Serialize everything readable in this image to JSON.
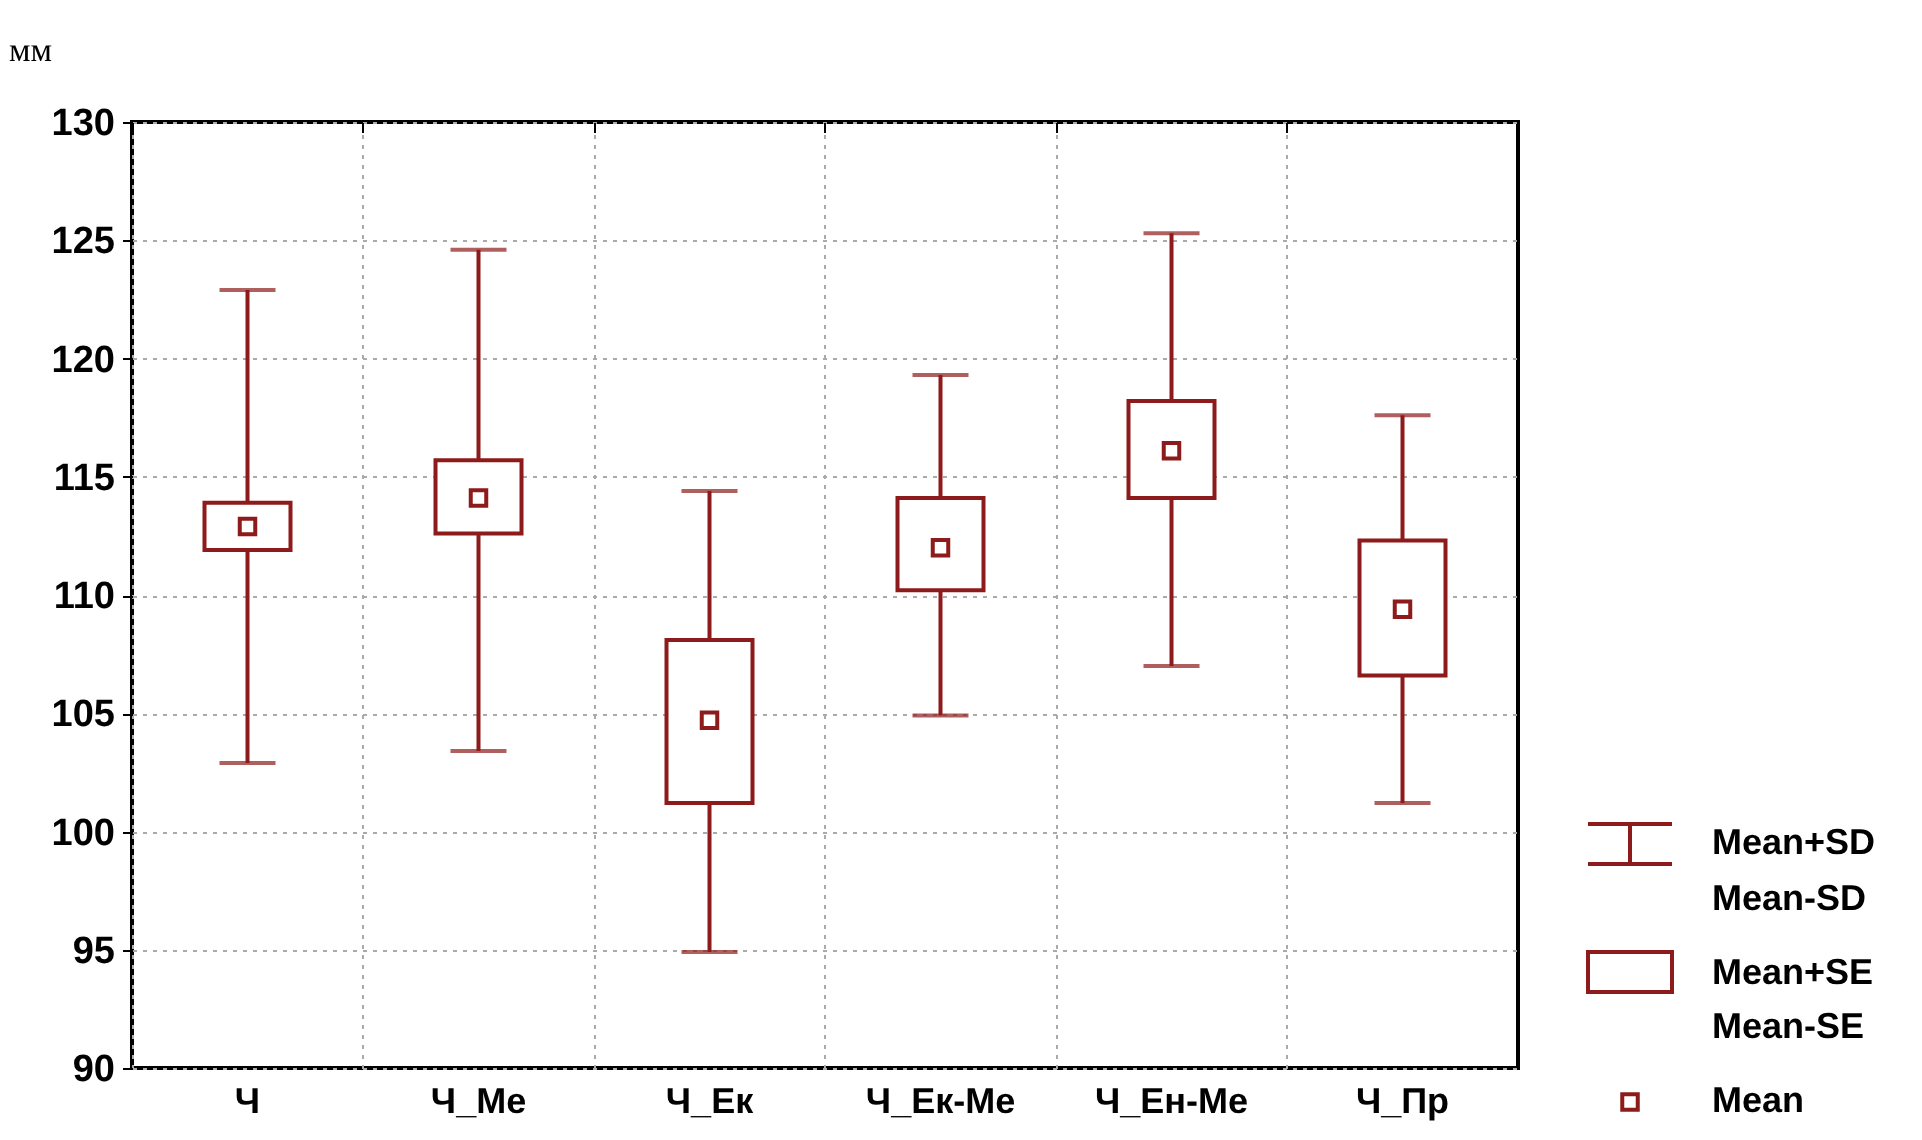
{
  "chart_data": {
    "type": "box",
    "ylabel": "мм",
    "categories": [
      "Ч",
      "Ч_Ме",
      "Ч_Ек",
      "Ч_Ек-Ме",
      "Ч_Ен-Ме",
      "Ч_Пр"
    ],
    "boxes": [
      {
        "low": 102.9,
        "q1": 111.9,
        "q3": 113.9,
        "high": 122.9,
        "mean": 112.9
      },
      {
        "low": 103.4,
        "q1": 112.6,
        "q3": 115.7,
        "high": 124.6,
        "mean": 114.1
      },
      {
        "low": 94.9,
        "q1": 101.2,
        "q3": 108.1,
        "high": 114.4,
        "mean": 104.7
      },
      {
        "low": 104.9,
        "q1": 110.2,
        "q3": 114.1,
        "high": 119.3,
        "mean": 112.0
      },
      {
        "low": 107.0,
        "q1": 114.1,
        "q3": 118.2,
        "high": 125.3,
        "mean": 116.1
      },
      {
        "low": 101.2,
        "q1": 106.6,
        "q3": 112.3,
        "high": 117.6,
        "mean": 109.4
      }
    ],
    "color": "#8e1b1b",
    "ylim": [
      90,
      130
    ],
    "yticks": [
      90,
      95,
      100,
      105,
      110,
      115,
      120,
      125,
      130
    ],
    "grid": true,
    "annotations": [
      "Mean+SD",
      "Mean-SD",
      "Mean+SE",
      "Mean-SE",
      "Mean"
    ]
  }
}
